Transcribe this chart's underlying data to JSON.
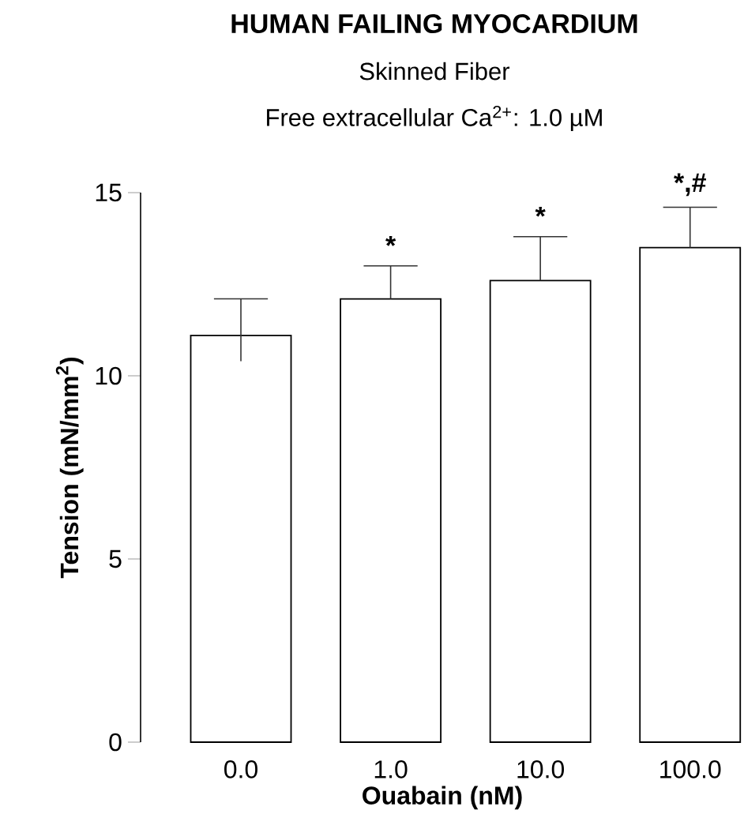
{
  "chart_data": {
    "type": "bar",
    "title": "HUMAN FAILING MYOCARDIUM",
    "subtitle": "Skinned Fiber",
    "xlabel": "Ouabain (nM)",
    "ylabel": "Tension (mN/mm$^{2}$)",
    "categories": [
      "0.0",
      "1.0",
      "10.0",
      "100.0"
    ],
    "values": [
      11.1,
      12.1,
      12.6,
      13.5
    ],
    "errors": [
      [
        10.4,
        12.1
      ],
      [
        12.1,
        13.0
      ],
      [
        12.6,
        13.8
      ],
      [
        13.5,
        14.6
      ]
    ],
    "color": "#000000",
    "ylim": [
      0,
      15
    ],
    "yticks": [
      0,
      5,
      10,
      15
    ],
    "annotations": [
      "Free extracellular Ca$^{2+}$: 1.0 µM",
      {
        "text": "*",
        "x": "1.0",
        "y": 12.1
      },
      {
        "text": "*",
        "x": "10.0",
        "y": 12.6
      },
      {
        "text": "*,#",
        "x": "100.0",
        "y": 13.5
      }
    ]
  }
}
